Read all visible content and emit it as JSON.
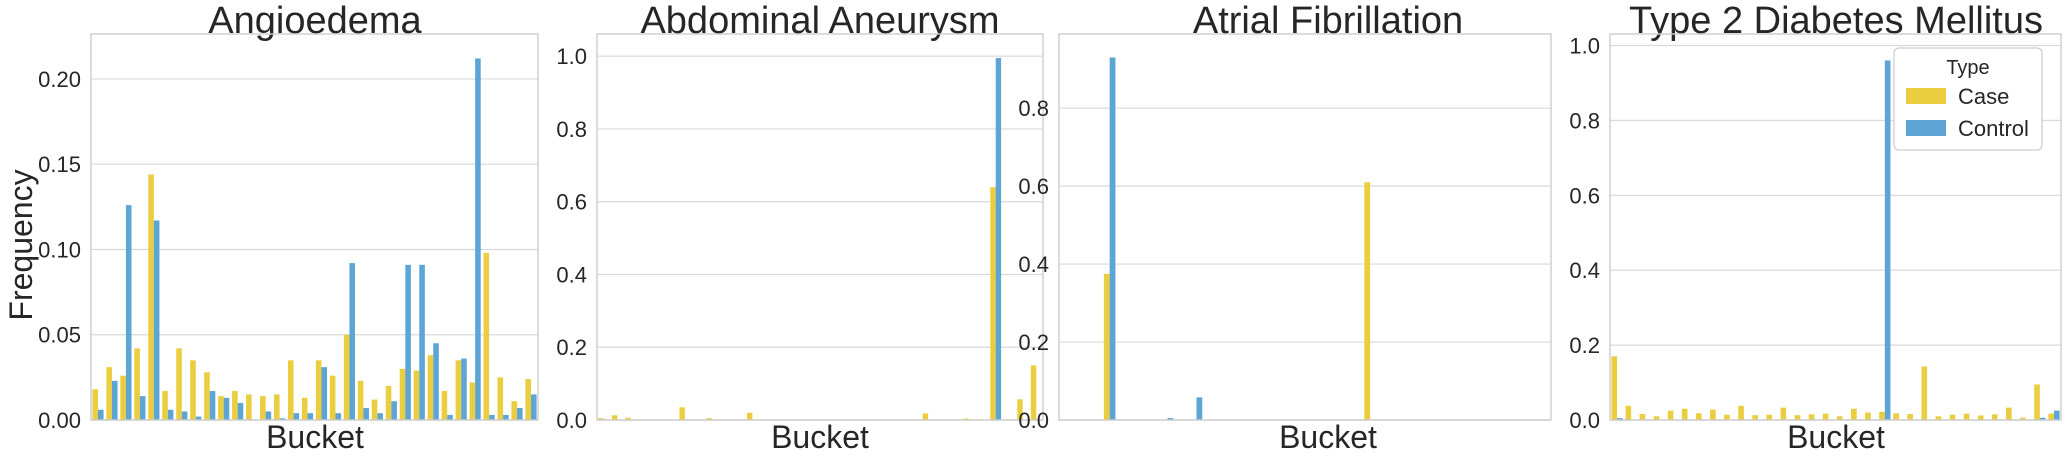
{
  "figure": {
    "ylabel": "Frequency",
    "colors": {
      "case": "#EBCD40",
      "control": "#5DA5D5",
      "grid": "#d9d9d9",
      "frame": "#cccccc"
    }
  },
  "legend": {
    "title": "Type",
    "entries": [
      "Case",
      "Control"
    ],
    "placement": "top-right of last panel"
  },
  "chart_data": [
    {
      "type": "bar",
      "title": "Angioedema",
      "xlabel": "Bucket",
      "ylabel": "Frequency",
      "ylim": [
        0,
        0.224
      ],
      "yticks": [
        0.0,
        0.05,
        0.1,
        0.15,
        0.2
      ],
      "ytick_labels": [
        "0.00",
        "0.05",
        "0.10",
        "0.15",
        "0.20"
      ],
      "grid": true,
      "series": [
        {
          "name": "Case",
          "values": [
            0.018,
            0.031,
            0.026,
            0.042,
            0.144,
            0.017,
            0.042,
            0.035,
            0.028,
            0.014,
            0.017,
            0.015,
            0.014,
            0.015,
            0.035,
            0.013,
            0.035,
            0.026,
            0.05,
            0.023,
            0.012,
            0.02,
            0.03,
            0.029,
            0.038,
            0.017,
            0.035,
            0.022,
            0.098,
            0.025,
            0.011,
            0.024
          ]
        },
        {
          "name": "Control",
          "values": [
            0.006,
            0.023,
            0.126,
            0.014,
            0.117,
            0.006,
            0.005,
            0.002,
            0.017,
            0.013,
            0.01,
            0.0,
            0.005,
            0.001,
            0.004,
            0.004,
            0.031,
            0.004,
            0.092,
            0.007,
            0.004,
            0.011,
            0.091,
            0.091,
            0.045,
            0.003,
            0.036,
            0.212,
            0.003,
            0.003,
            0.007,
            0.015
          ]
        }
      ]
    },
    {
      "type": "bar",
      "title": "Abdominal Aneurysm",
      "xlabel": "Bucket",
      "ylim": [
        0,
        1.05
      ],
      "yticks": [
        0.0,
        0.2,
        0.4,
        0.6,
        0.8,
        1.0
      ],
      "ytick_labels": [
        "0.0",
        "0.2",
        "0.4",
        "0.6",
        "0.8",
        "1.0"
      ],
      "grid": true,
      "series": [
        {
          "name": "Case",
          "values": [
            0.005,
            0.013,
            0.006,
            0.0,
            0.0,
            0.0,
            0.035,
            0.0,
            0.005,
            0.0,
            0.0,
            0.02,
            0.0,
            0.0,
            0.0,
            0.0,
            0.0,
            0.0,
            0.0,
            0.0,
            0.0,
            0.0,
            0.0,
            0.0,
            0.018,
            0.0,
            0.0,
            0.004,
            0.0,
            0.64,
            0.0,
            0.057,
            0.15
          ]
        },
        {
          "name": "Control",
          "values": [
            0.0,
            0.0,
            0.0,
            0.0,
            0.0,
            0.0,
            0.0,
            0.0,
            0.0,
            0.0,
            0.0,
            0.0,
            0.0,
            0.0,
            0.0,
            0.0,
            0.0,
            0.0,
            0.0,
            0.0,
            0.0,
            0.0,
            0.0,
            0.0,
            0.0,
            0.0,
            0.0,
            0.0,
            0.0,
            0.995,
            0.0,
            0.0,
            0.0
          ]
        }
      ]
    },
    {
      "type": "bar",
      "title": "Atrial Fibrillation",
      "xlabel": "Bucket",
      "ylim": [
        0,
        0.98
      ],
      "yticks": [
        0.0,
        0.2,
        0.4,
        0.6,
        0.8
      ],
      "ytick_labels": [
        "0.0",
        "0.2",
        "0.4",
        "0.6",
        "0.8"
      ],
      "grid": true,
      "series": [
        {
          "name": "Case",
          "values": [
            0.0,
            0.0,
            0.0,
            0.375,
            0.0,
            0.0,
            0.0,
            0.0,
            0.0,
            0.0,
            0.0,
            0.0,
            0.0,
            0.0,
            0.0,
            0.0,
            0.0,
            0.0,
            0.0,
            0.0,
            0.0,
            0.61,
            0.0,
            0.0,
            0.0,
            0.0,
            0.0,
            0.0,
            0.0,
            0.0,
            0.0,
            0.0,
            0.0,
            0.0
          ]
        },
        {
          "name": "Control",
          "values": [
            0.0,
            0.0,
            0.0,
            0.93,
            0.0,
            0.0,
            0.0,
            0.005,
            0.0,
            0.058,
            0.0,
            0.0,
            0.0,
            0.0,
            0.0,
            0.0,
            0.0,
            0.0,
            0.0,
            0.0,
            0.0,
            0.0,
            0.0,
            0.0,
            0.0,
            0.0,
            0.0,
            0.0,
            0.0,
            0.0,
            0.0,
            0.0,
            0.0,
            0.0
          ]
        }
      ]
    },
    {
      "type": "bar",
      "title": "Type 2 Diabetes Mellitus",
      "xlabel": "Bucket",
      "ylim": [
        0,
        1.02
      ],
      "yticks": [
        0.0,
        0.2,
        0.4,
        0.6,
        0.8,
        1.0
      ],
      "ytick_labels": [
        "0.0",
        "0.2",
        "0.4",
        "0.6",
        "0.8",
        "1.0"
      ],
      "grid": true,
      "series": [
        {
          "name": "Case",
          "values": [
            0.17,
            0.038,
            0.016,
            0.01,
            0.025,
            0.03,
            0.018,
            0.028,
            0.014,
            0.038,
            0.013,
            0.014,
            0.033,
            0.013,
            0.015,
            0.017,
            0.01,
            0.03,
            0.02,
            0.022,
            0.018,
            0.016,
            0.143,
            0.01,
            0.014,
            0.017,
            0.012,
            0.015,
            0.033,
            0.006,
            0.095,
            0.017
          ]
        },
        {
          "name": "Control",
          "values": [
            0.005,
            0.0,
            0.0,
            0.0,
            0.0,
            0.0,
            0.0,
            0.0,
            0.0,
            0.0,
            0.0,
            0.0,
            0.0,
            0.0,
            0.0,
            0.0,
            0.0,
            0.0,
            0.0,
            0.96,
            0.0,
            0.0,
            0.0,
            0.0,
            0.0,
            0.0,
            0.0,
            0.0,
            0.0,
            0.0,
            0.006,
            0.025
          ]
        }
      ]
    }
  ]
}
